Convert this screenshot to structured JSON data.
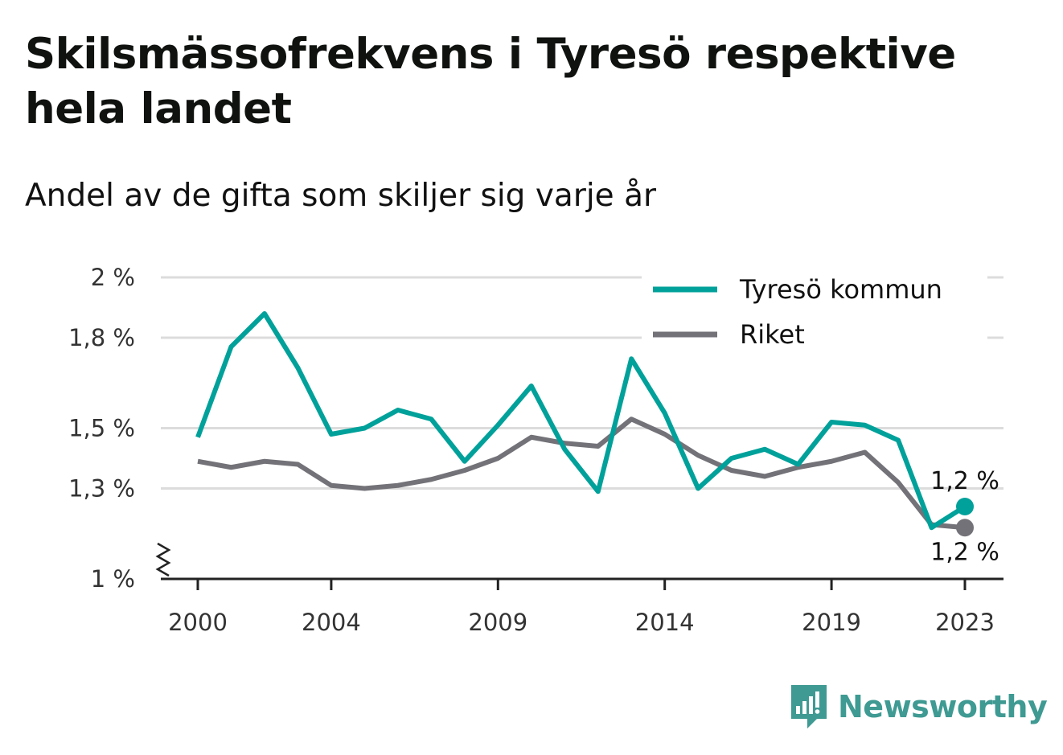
{
  "title": "Skilsmässofrekvens i Tyresö respektive hela landet",
  "subtitle": "Andel av de gifta som skiljer sig varje år",
  "brand": "Newsworthy",
  "colors": {
    "accent": "#00a19a",
    "secondary": "#737278",
    "brand": "#3e9a92"
  },
  "chart_data": {
    "type": "line",
    "x": [
      2000,
      2001,
      2002,
      2003,
      2004,
      2005,
      2006,
      2007,
      2008,
      2009,
      2010,
      2011,
      2012,
      2013,
      2014,
      2015,
      2016,
      2017,
      2018,
      2019,
      2020,
      2021,
      2022,
      2023
    ],
    "x_tick_labels": [
      "2000",
      "2004",
      "2009",
      "2014",
      "2019",
      "2023"
    ],
    "y_tick_labels": [
      "1 %",
      "1,3 %",
      "1,5 %",
      "1,8 %",
      "2 %"
    ],
    "ylim": [
      1.0,
      2.0
    ],
    "axis_break": true,
    "grid": true,
    "legend_position": "top-right",
    "series": [
      {
        "name": "Tyresö kommun",
        "color": "#00a19a",
        "values": [
          1.47,
          1.77,
          1.88,
          1.7,
          1.48,
          1.5,
          1.56,
          1.53,
          1.39,
          1.51,
          1.64,
          1.43,
          1.29,
          1.73,
          1.55,
          1.3,
          1.4,
          1.43,
          1.38,
          1.52,
          1.51,
          1.46,
          1.17,
          1.24
        ],
        "end_label": "1,2 %"
      },
      {
        "name": "Riket",
        "color": "#737278",
        "values": [
          1.39,
          1.37,
          1.39,
          1.38,
          1.31,
          1.3,
          1.31,
          1.33,
          1.36,
          1.4,
          1.47,
          1.45,
          1.44,
          1.53,
          1.48,
          1.41,
          1.36,
          1.34,
          1.37,
          1.39,
          1.42,
          1.32,
          1.18,
          1.17
        ],
        "end_label": "1,2 %"
      }
    ]
  }
}
